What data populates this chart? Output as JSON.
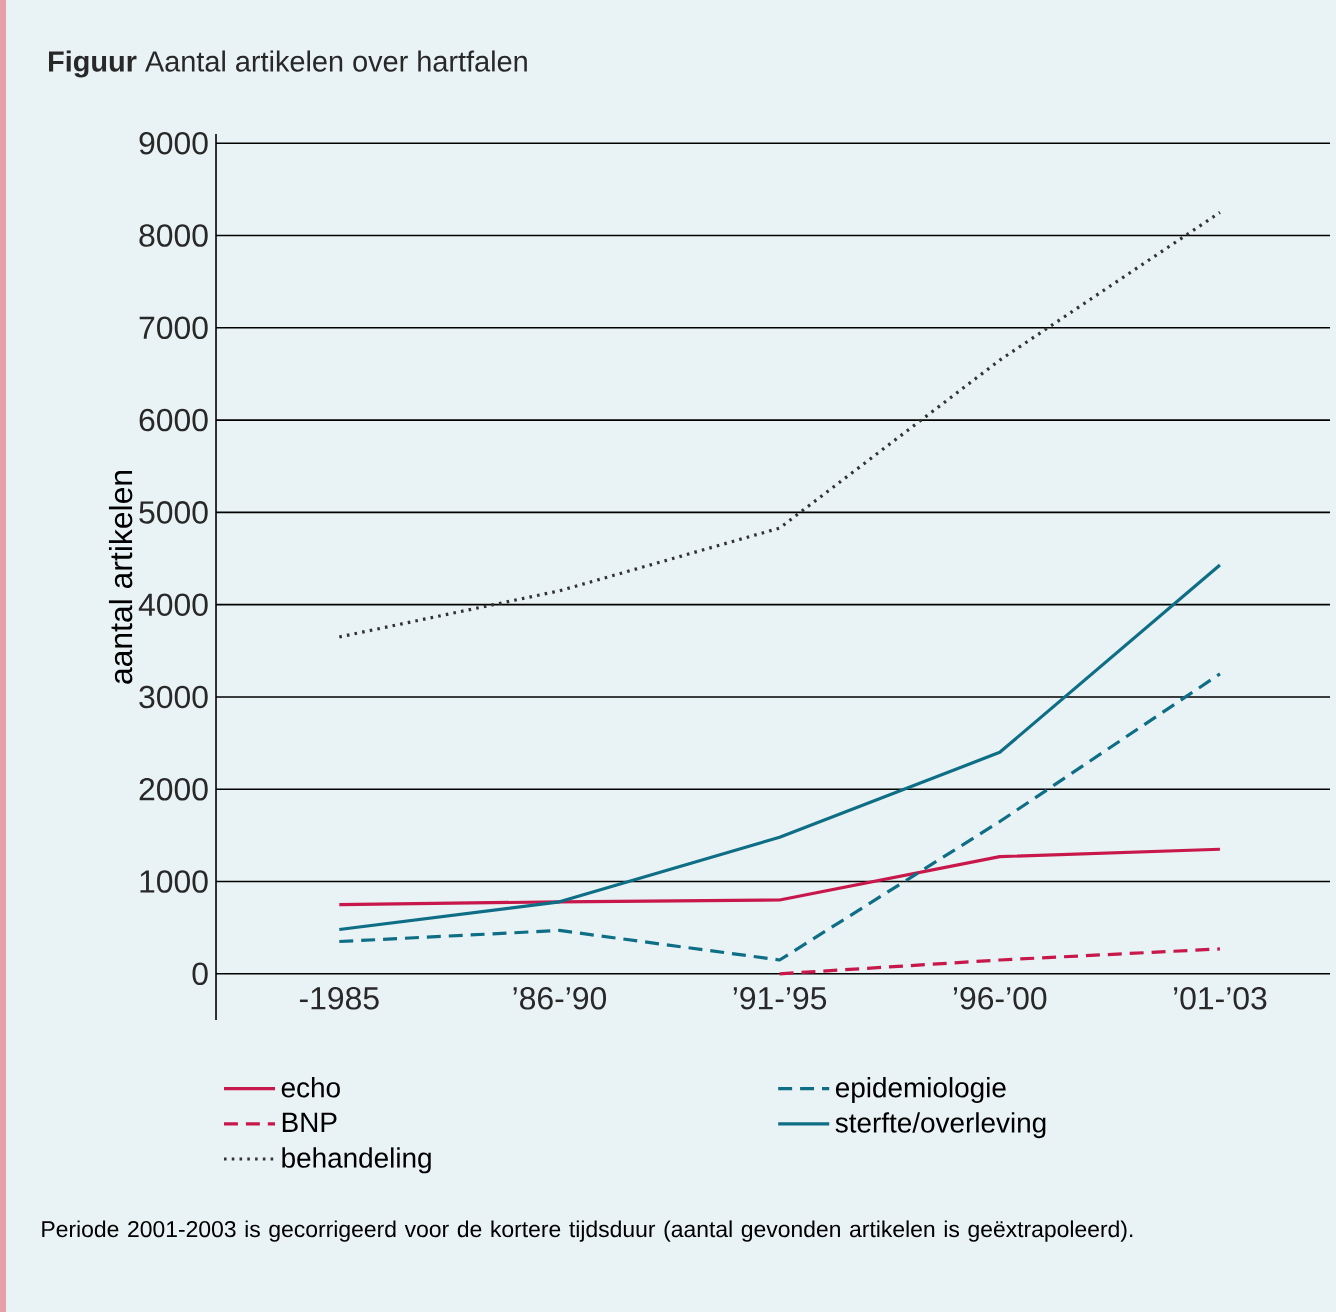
{
  "chart_data": {
    "type": "line",
    "title": "**Figuur** Aantal artikelen over hartfalen",
    "ylabel": "aantal artikelen",
    "categories": [
      "-1985",
      "’86-’90",
      "’91-’95",
      "’96-’00",
      "’01-’03"
    ],
    "series": [
      {
        "name": "echo",
        "color": "#c8174b",
        "line_style": "solid",
        "values": [
          750,
          780,
          800,
          1270,
          1350
        ]
      },
      {
        "name": "epidemiologie",
        "color": "#0e6e85",
        "line_style": "dashed",
        "values": [
          350,
          470,
          150,
          1650,
          3250
        ]
      },
      {
        "name": "BNP",
        "color": "#c8174b",
        "line_style": "dashed",
        "values": [
          null,
          null,
          0,
          150,
          270
        ]
      },
      {
        "name": "sterfte/overleving",
        "color": "#0e6e85",
        "line_style": "solid",
        "values": [
          480,
          780,
          1480,
          2400,
          4430
        ]
      },
      {
        "name": "behandeling",
        "color": "#333333",
        "line_style": "dotted",
        "values": [
          3650,
          4150,
          4830,
          6650,
          8250
        ]
      }
    ],
    "ylim": [
      -500,
      9100
    ],
    "yticks": [
      0,
      1000,
      2000,
      3000,
      4000,
      5000,
      6000,
      7000,
      8000,
      9000
    ],
    "grid": "y",
    "legend": "bottom",
    "annotations": [
      "Periode 2001-2003 is gecorrigeerd voor de kortere tijdsduur (aantal gevonden artikelen is geëxtrapoleerd)."
    ]
  }
}
